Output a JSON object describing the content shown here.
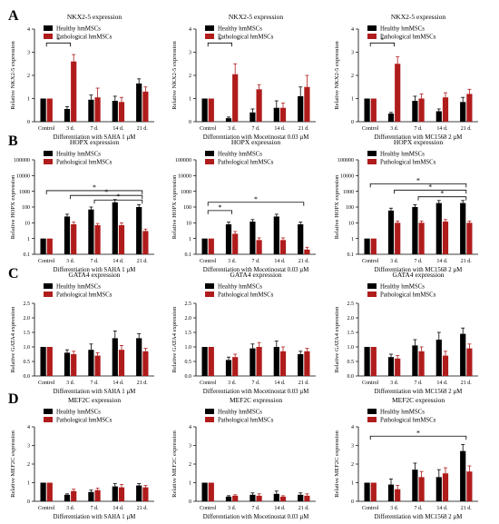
{
  "legend": {
    "healthy": "Healthy hmMSCs",
    "pathological": "Pathological hmMSCs"
  },
  "colors": {
    "healthy": "#000000",
    "pathological": "#b01c1c"
  },
  "significance_mark": "*",
  "rows": [
    {
      "letter": "A",
      "title": "NKX2-5 expression",
      "ylabel": "Relative NKX2-5 expression",
      "scale": "linear",
      "yticks": [
        "0",
        "1",
        "2",
        "3",
        "4"
      ],
      "charts": [
        {
          "xlabel": "Differentiation with SAHA 1 µM",
          "categories": [
            "Control",
            "3 d.",
            "7 d.",
            "14 d.",
            "21 d."
          ],
          "healthy": [
            1.0,
            0.55,
            0.95,
            0.9,
            1.65
          ],
          "pathological": [
            1.0,
            2.6,
            1.05,
            0.85,
            1.3
          ],
          "healthy_err": [
            0,
            0.1,
            0.2,
            0.2,
            0.2
          ],
          "pathological_err": [
            0,
            0.3,
            0.4,
            0.2,
            0.2
          ],
          "sig": [
            {
              "from": 0,
              "to": 1,
              "level": 3.4,
              "label": "*"
            }
          ]
        },
        {
          "xlabel": "Differentiation with Mocetinostat 0.03 µM",
          "categories": [
            "Control",
            "3 d.",
            "7 d.",
            "14 d.",
            "21 d."
          ],
          "healthy": [
            1.0,
            0.15,
            0.4,
            0.6,
            1.1
          ],
          "pathological": [
            1.0,
            2.05,
            1.4,
            0.6,
            1.5
          ],
          "healthy_err": [
            0,
            0.05,
            0.15,
            0.3,
            0.4
          ],
          "pathological_err": [
            0,
            0.45,
            0.2,
            0.2,
            0.5
          ],
          "sig": [
            {
              "from": 0,
              "to": 1,
              "level": 3.4,
              "label": "*"
            }
          ]
        },
        {
          "xlabel": "Differentiation with MC1568 2 µM",
          "categories": [
            "Control",
            "3 d.",
            "7 d.",
            "14 d.",
            "21 d."
          ],
          "healthy": [
            1.0,
            0.35,
            0.9,
            0.45,
            0.85
          ],
          "pathological": [
            1.0,
            2.5,
            1.0,
            1.05,
            1.2
          ],
          "healthy_err": [
            0,
            0.05,
            0.2,
            0.1,
            0.2
          ],
          "pathological_err": [
            0,
            0.3,
            0.2,
            0.2,
            0.2
          ],
          "sig": [
            {
              "from": 0,
              "to": 1,
              "level": 3.4,
              "label": "*"
            }
          ]
        }
      ]
    },
    {
      "letter": "B",
      "title": "HOPX expression",
      "ylabel": "Relative HOPX expression",
      "scale": "log",
      "yticks": [
        "0.1",
        "1",
        "10",
        "100",
        "1000",
        "10000",
        "100000"
      ],
      "charts": [
        {
          "xlabel": "Differentiation with SAHA 1 µM",
          "categories": [
            "Control",
            "3 d.",
            "7 d.",
            "14 d.",
            "21 d."
          ],
          "healthy": [
            1,
            25,
            70,
            200,
            100
          ],
          "pathological": [
            1,
            8,
            7,
            7,
            3
          ],
          "healthy_err": [
            0,
            10,
            30,
            100,
            40
          ],
          "pathological_err": [
            0,
            3,
            2,
            3,
            1
          ],
          "sig": [
            {
              "from": 0,
              "to": 4,
              "level": 1100,
              "label": "*"
            },
            {
              "from": 1,
              "to": 4,
              "level": 550,
              "label": "*"
            },
            {
              "from": 2,
              "to": 4,
              "level": 280,
              "label": "*"
            }
          ]
        },
        {
          "xlabel": "Differentiation with Mocetinostat 0.03 µM",
          "categories": [
            "Control",
            "3 d.",
            "7 d.",
            "14 d.",
            "21 d."
          ],
          "healthy": [
            1,
            8,
            12,
            25,
            8
          ],
          "pathological": [
            1,
            2,
            0.8,
            0.8,
            0.2
          ],
          "healthy_err": [
            0,
            3,
            4,
            10,
            3
          ],
          "pathological_err": [
            0,
            0.8,
            0.3,
            0.3,
            0.08
          ],
          "sig": [
            {
              "from": 0,
              "to": 4,
              "level": 200,
              "label": "*"
            },
            {
              "from": 0,
              "to": 1,
              "level": 60,
              "label": "*"
            }
          ]
        },
        {
          "xlabel": "Differentiation with MC1568 2 µM",
          "categories": [
            "Control",
            "3 d.",
            "7 d.",
            "14 d.",
            "21 d."
          ],
          "healthy": [
            1,
            60,
            100,
            180,
            180
          ],
          "pathological": [
            1,
            10,
            10,
            12,
            10
          ],
          "healthy_err": [
            0,
            25,
            40,
            80,
            80
          ],
          "pathological_err": [
            0,
            3,
            3,
            4,
            3
          ],
          "sig": [
            {
              "from": 0,
              "to": 4,
              "level": 3000,
              "label": "*"
            },
            {
              "from": 1,
              "to": 4,
              "level": 1200,
              "label": "*"
            },
            {
              "from": 2,
              "to": 4,
              "level": 450,
              "label": "*"
            }
          ]
        }
      ]
    },
    {
      "letter": "C",
      "title": "GATA4 expression",
      "ylabel": "Relative GATA4 expression",
      "scale": "linear",
      "yticks": [
        "0.0",
        "0.5",
        "1.0",
        "1.5",
        "2.0",
        "2.5"
      ],
      "charts": [
        {
          "xlabel": "Differentiation with SAHA 1 µM",
          "categories": [
            "Control",
            "3 d.",
            "7 d.",
            "14 d.",
            "21 d."
          ],
          "healthy": [
            1.0,
            0.8,
            0.9,
            1.3,
            1.3
          ],
          "pathological": [
            1.0,
            0.75,
            0.7,
            0.9,
            0.85
          ],
          "healthy_err": [
            0,
            0.1,
            0.2,
            0.25,
            0.15
          ],
          "pathological_err": [
            0,
            0.1,
            0.1,
            0.15,
            0.1
          ],
          "sig": []
        },
        {
          "xlabel": "Differentiation with Mocetinostat 0.03 µM",
          "categories": [
            "Control",
            "3 d.",
            "7 d.",
            "14 d.",
            "21 d."
          ],
          "healthy": [
            1.0,
            0.55,
            0.95,
            1.0,
            0.75
          ],
          "pathological": [
            1.0,
            0.65,
            1.0,
            0.85,
            0.85
          ],
          "healthy_err": [
            0,
            0.1,
            0.15,
            0.2,
            0.1
          ],
          "pathological_err": [
            0,
            0.1,
            0.15,
            0.15,
            0.1
          ],
          "sig": []
        },
        {
          "xlabel": "Differentiation with MC1568 2 µM",
          "categories": [
            "Control",
            "3 d.",
            "7 d.",
            "14 d.",
            "21 d."
          ],
          "healthy": [
            1.0,
            0.65,
            1.05,
            1.25,
            1.45
          ],
          "pathological": [
            1.0,
            0.6,
            0.85,
            0.7,
            0.95
          ],
          "healthy_err": [
            0,
            0.1,
            0.2,
            0.25,
            0.2
          ],
          "pathological_err": [
            0,
            0.1,
            0.15,
            0.15,
            0.15
          ],
          "sig": []
        }
      ]
    },
    {
      "letter": "D",
      "title": "MEF2C expression",
      "ylabel": "Relative MEF2C expression",
      "scale": "linear",
      "yticks": [
        "0",
        "1",
        "2",
        "3",
        "4"
      ],
      "charts": [
        {
          "xlabel": "Differentiation with SAHA 1 µM",
          "categories": [
            "Control",
            "3 d.",
            "7 d.",
            "14 d.",
            "21 d."
          ],
          "healthy": [
            1.0,
            0.35,
            0.5,
            0.8,
            0.85
          ],
          "pathological": [
            1.0,
            0.55,
            0.6,
            0.75,
            0.75
          ],
          "healthy_err": [
            0,
            0.05,
            0.1,
            0.15,
            0.1
          ],
          "pathological_err": [
            0,
            0.1,
            0.1,
            0.15,
            0.1
          ],
          "sig": []
        },
        {
          "xlabel": "Differentiation with Mocetinostat 0.03 µM",
          "categories": [
            "Control",
            "3 d.",
            "7 d.",
            "14 d.",
            "21 d."
          ],
          "healthy": [
            1.0,
            0.25,
            0.35,
            0.4,
            0.35
          ],
          "pathological": [
            1.0,
            0.3,
            0.3,
            0.25,
            0.3
          ],
          "healthy_err": [
            0,
            0.05,
            0.1,
            0.15,
            0.1
          ],
          "pathological_err": [
            0,
            0.05,
            0.1,
            0.05,
            0.1
          ],
          "sig": []
        },
        {
          "xlabel": "Differentiation with MC1568 2 µM",
          "categories": [
            "Control",
            "3 d.",
            "7 d.",
            "14 d.",
            "21 d."
          ],
          "healthy": [
            1.0,
            0.9,
            1.7,
            1.3,
            2.7
          ],
          "pathological": [
            1.0,
            0.65,
            1.3,
            1.5,
            1.6
          ],
          "healthy_err": [
            0,
            0.3,
            0.35,
            0.4,
            0.35
          ],
          "pathological_err": [
            0,
            0.2,
            0.3,
            0.3,
            0.3
          ],
          "sig": [
            {
              "from": 0,
              "to": 4,
              "level": 3.5,
              "label": "*"
            }
          ]
        }
      ]
    }
  ]
}
